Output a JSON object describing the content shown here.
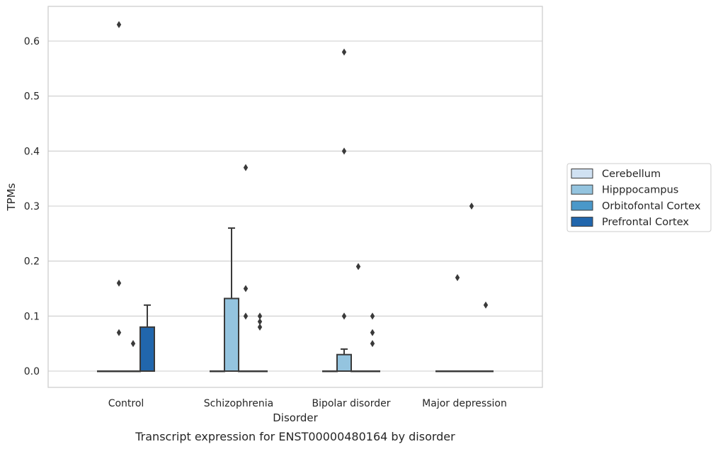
{
  "caption": "Transcript expression for ENST00000480164 by disorder",
  "chart_data": {
    "type": "box",
    "title": "",
    "xlabel": "Disorder",
    "ylabel": "TPMs",
    "ylim": [
      -0.03,
      0.66
    ],
    "yticks": [
      0.0,
      0.1,
      0.2,
      0.3,
      0.4,
      0.5,
      0.6
    ],
    "ytick_labels": [
      "0.0",
      "0.1",
      "0.2",
      "0.3",
      "0.4",
      "0.5",
      "0.6"
    ],
    "grid": "horizontal",
    "legend_position": "right",
    "categories": [
      "Control",
      "Schizophrenia",
      "Bipolar disorder",
      "Major depression"
    ],
    "series": [
      {
        "name": "Cerebellum",
        "color": "#d0e1f2",
        "boxes": [
          {
            "category": "Control",
            "q1": 0,
            "median": 0,
            "q3": 0,
            "whisker_low": 0,
            "whisker_high": 0,
            "outliers": []
          },
          {
            "category": "Schizophrenia",
            "q1": 0,
            "median": 0,
            "q3": 0,
            "whisker_low": 0,
            "whisker_high": 0,
            "outliers": []
          },
          {
            "category": "Bipolar disorder",
            "q1": 0,
            "median": 0,
            "q3": 0,
            "whisker_low": 0,
            "whisker_high": 0,
            "outliers": []
          },
          {
            "category": "Major depression",
            "q1": 0,
            "median": 0,
            "q3": 0,
            "whisker_low": 0,
            "whisker_high": 0,
            "outliers": []
          }
        ]
      },
      {
        "name": "Hipppocampus",
        "color": "#94c4df",
        "boxes": [
          {
            "category": "Control",
            "q1": 0,
            "median": 0,
            "q3": 0,
            "whisker_low": 0,
            "whisker_high": 0,
            "outliers": [
              0.63,
              0.16,
              0.07
            ]
          },
          {
            "category": "Schizophrenia",
            "q1": 0,
            "median": 0,
            "q3": 0.132,
            "whisker_low": 0,
            "whisker_high": 0.26,
            "outliers": []
          },
          {
            "category": "Bipolar disorder",
            "q1": 0,
            "median": 0,
            "q3": 0.03,
            "whisker_low": 0,
            "whisker_high": 0.04,
            "outliers": [
              0.58,
              0.4,
              0.1
            ]
          },
          {
            "category": "Major depression",
            "q1": 0,
            "median": 0,
            "q3": 0,
            "whisker_low": 0,
            "whisker_high": 0,
            "outliers": [
              0.17
            ]
          }
        ]
      },
      {
        "name": "Orbitofontal Cortex",
        "color": "#4a98c9",
        "boxes": [
          {
            "category": "Control",
            "q1": 0,
            "median": 0,
            "q3": 0,
            "whisker_low": 0,
            "whisker_high": 0,
            "outliers": [
              0.05
            ]
          },
          {
            "category": "Schizophrenia",
            "q1": 0,
            "median": 0,
            "q3": 0,
            "whisker_low": 0,
            "whisker_high": 0,
            "outliers": [
              0.37,
              0.15,
              0.1
            ]
          },
          {
            "category": "Bipolar disorder",
            "q1": 0,
            "median": 0,
            "q3": 0,
            "whisker_low": 0,
            "whisker_high": 0,
            "outliers": [
              0.19
            ]
          },
          {
            "category": "Major depression",
            "q1": 0,
            "median": 0,
            "q3": 0,
            "whisker_low": 0,
            "whisker_high": 0,
            "outliers": [
              0.3
            ]
          }
        ]
      },
      {
        "name": "Prefrontal Cortex",
        "color": "#2166ac",
        "boxes": [
          {
            "category": "Control",
            "q1": 0,
            "median": 0,
            "q3": 0.08,
            "whisker_low": 0,
            "whisker_high": 0.12,
            "outliers": []
          },
          {
            "category": "Schizophrenia",
            "q1": 0,
            "median": 0,
            "q3": 0,
            "whisker_low": 0,
            "whisker_high": 0,
            "outliers": [
              0.1,
              0.09,
              0.08
            ]
          },
          {
            "category": "Bipolar disorder",
            "q1": 0,
            "median": 0,
            "q3": 0,
            "whisker_low": 0,
            "whisker_high": 0,
            "outliers": [
              0.1,
              0.07,
              0.05
            ]
          },
          {
            "category": "Major depression",
            "q1": 0,
            "median": 0,
            "q3": 0,
            "whisker_low": 0,
            "whisker_high": 0,
            "outliers": [
              0.12
            ]
          }
        ]
      }
    ]
  }
}
